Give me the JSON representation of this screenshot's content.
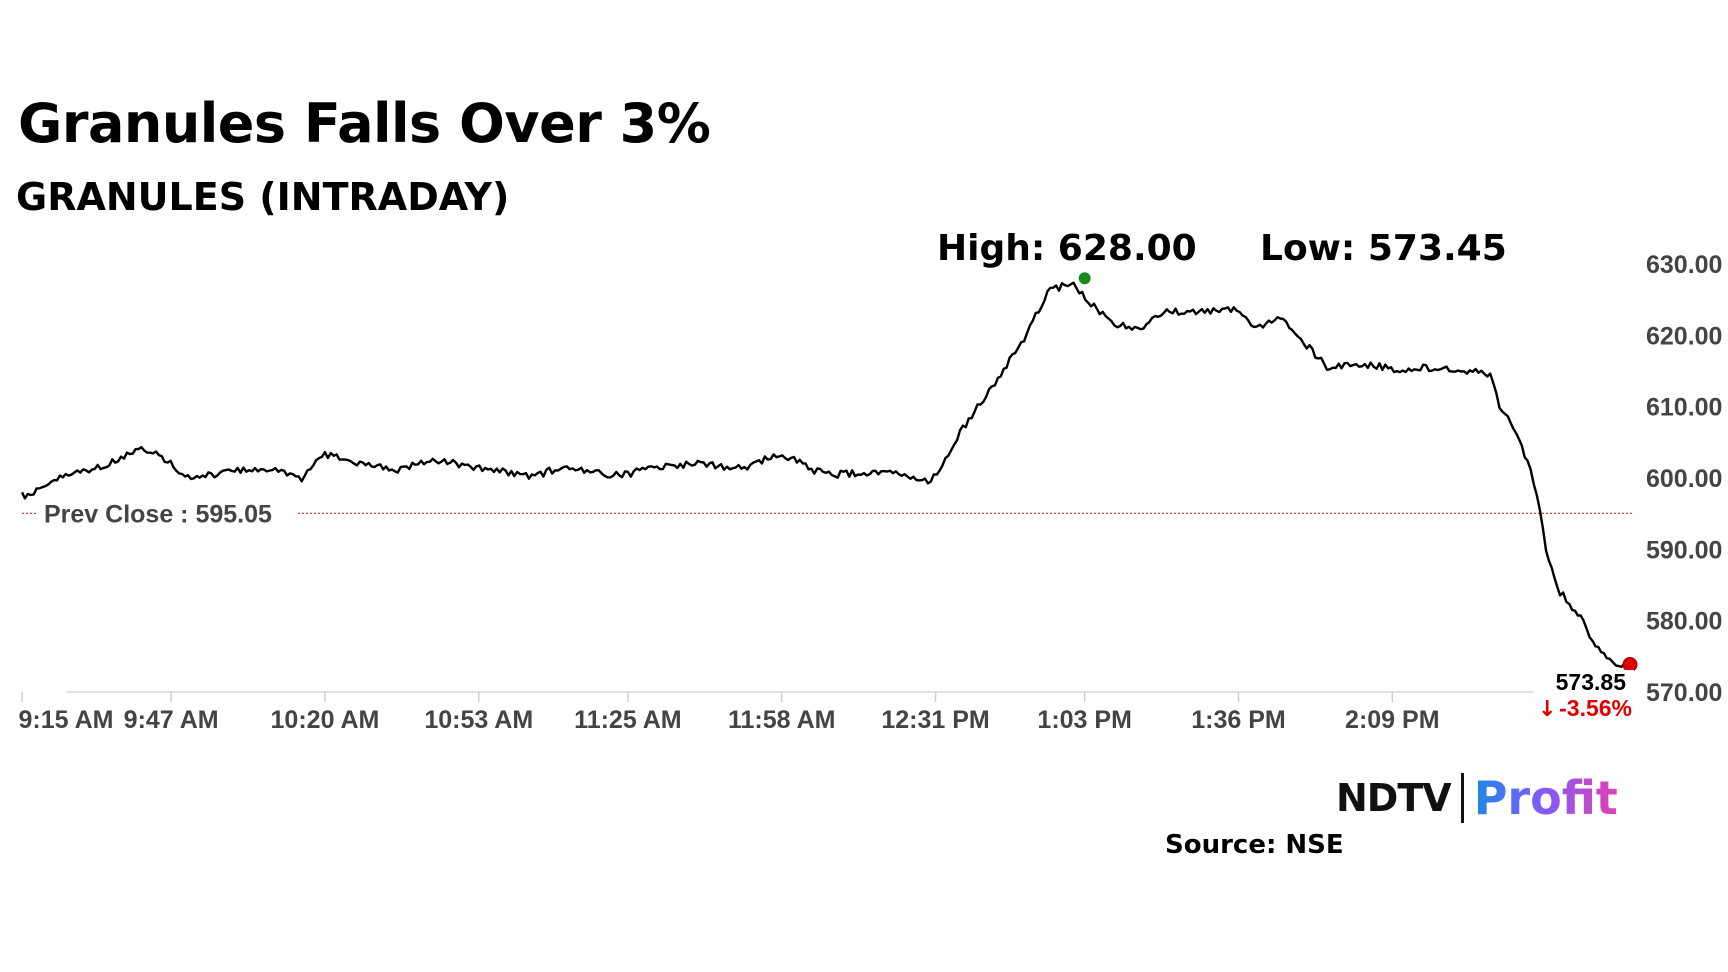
{
  "header": {
    "title": "Granules Falls Over 3%",
    "subtitle": "GRANULES (INTRADAY)",
    "high_text": "High: 628.00",
    "low_text": "Low: 573.45"
  },
  "footer": {
    "logo_ndtv": "NDTV",
    "logo_profit": "Profit",
    "source": "Source: NSE"
  },
  "chart_data": {
    "type": "line",
    "y_ticks": [
      "630.00",
      "620.00",
      "610.00",
      "600.00",
      "590.00",
      "580.00",
      "570.00"
    ],
    "x_ticks": [
      "9:15 AM",
      "9:47 AM",
      "10:20 AM",
      "10:53 AM",
      "11:25 AM",
      "11:58 AM",
      "12:31 PM",
      "1:03 PM",
      "1:36 PM",
      "2:09 PM"
    ],
    "ylim": [
      570,
      630
    ],
    "prev_close": 595.05,
    "prev_close_label": "Prev Close : 595.05",
    "high": 628.0,
    "high_time": "1:03 PM",
    "low": 573.45,
    "last_price": "573.85",
    "change": "-3.56%",
    "grid": false,
    "colors": {
      "line": "#000000",
      "prev_close": "#c62828",
      "high_marker": "#1a8a1a",
      "low_marker": "#e00000",
      "change": "#e00000",
      "axis_text": "#444444"
    },
    "series": [
      {
        "x": [
          "9:15 AM",
          "9:20 AM",
          "9:25 AM",
          "9:30 AM",
          "9:35 AM",
          "9:40 AM",
          "9:45 AM",
          "9:50 AM",
          "9:55 AM",
          "10:00 AM",
          "10:05 AM",
          "10:10 AM",
          "10:15 AM",
          "10:20 AM",
          "10:25 AM",
          "10:30 AM",
          "10:35 AM",
          "10:40 AM",
          "10:45 AM",
          "10:50 AM",
          "10:55 AM",
          "11:00 AM",
          "11:05 AM",
          "11:10 AM",
          "11:15 AM",
          "11:20 AM",
          "11:25 AM",
          "11:30 AM",
          "11:35 AM",
          "11:40 AM",
          "11:45 AM",
          "11:50 AM",
          "11:55 AM",
          "12:00 PM",
          "12:05 PM",
          "12:10 PM",
          "12:15 PM",
          "12:20 PM",
          "12:25 PM",
          "12:30 PM",
          "12:35 PM",
          "12:40 PM",
          "12:45 PM",
          "12:50 PM",
          "12:55 PM",
          "1:00 PM",
          "1:05 PM",
          "1:10 PM",
          "1:15 PM",
          "1:20 PM",
          "1:25 PM",
          "1:30 PM",
          "1:35 PM",
          "1:40 PM",
          "1:45 PM",
          "1:50 PM",
          "1:55 PM",
          "2:00 PM",
          "2:05 PM",
          "2:10 PM",
          "2:15 PM",
          "2:20 PM",
          "2:25 PM",
          "2:30 PM",
          "2:32 PM",
          "2:35 PM",
          "2:38 PM",
          "2:40 PM",
          "2:42 PM",
          "2:45 PM",
          "2:47 PM",
          "2:50 PM",
          "2:52 PM",
          "2:55 PM",
          "2:57 PM",
          "3:00 PM"
        ],
        "y": [
          597.5,
          598.5,
          600.8,
          601.2,
          602.3,
          604.3,
          603.0,
          600.2,
          600.5,
          600.8,
          601.4,
          601.0,
          600.0,
          603.3,
          602.5,
          601.8,
          600.8,
          602.2,
          602.5,
          601.8,
          601.2,
          600.7,
          600.2,
          601.4,
          601.1,
          600.5,
          600.5,
          601.5,
          601.8,
          602.0,
          601.6,
          601.5,
          602.8,
          603.0,
          601.0,
          600.5,
          600.8,
          600.9,
          600.4,
          599.3,
          605.0,
          610.0,
          614.5,
          619.5,
          626.0,
          627.5,
          624.0,
          621.5,
          620.8,
          623.5,
          623.0,
          623.5,
          623.7,
          621.0,
          622.5,
          619.0,
          615.5,
          616.0,
          615.8,
          615.2,
          615.5,
          615.3,
          615.0,
          614.5,
          610.0,
          607.0,
          602.5,
          598.0,
          590.0,
          584.0,
          582.5,
          580.0,
          577.0,
          575.0,
          573.5,
          573.85
        ]
      }
    ]
  }
}
